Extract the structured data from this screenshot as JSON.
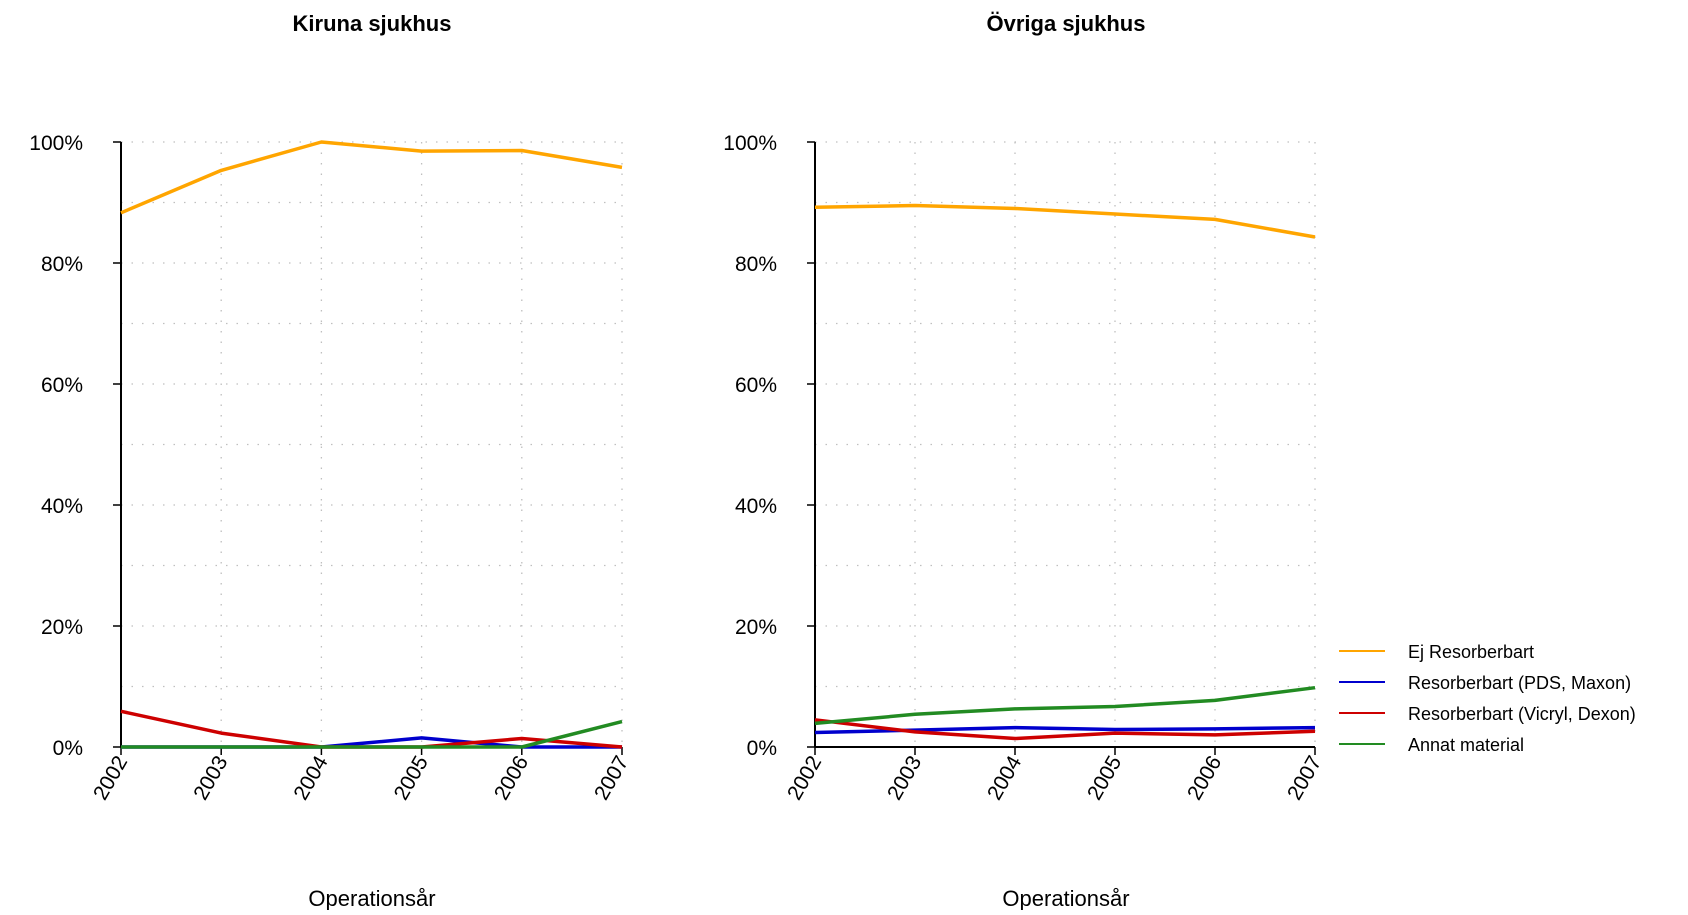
{
  "chart_data": [
    {
      "type": "line",
      "title": "Kiruna sjukhus",
      "xlabel": "Operationsår",
      "ylabel": "",
      "x": [
        "2002",
        "2003",
        "2004",
        "2005",
        "2006",
        "2007"
      ],
      "ylim": [
        0,
        100
      ],
      "yticks": [
        "0%",
        "20%",
        "40%",
        "60%",
        "80%",
        "100%"
      ],
      "grid": true,
      "series": [
        {
          "name": "Ej Resorberbart",
          "color": "#FFA500",
          "values": [
            88.3,
            95.3,
            100,
            98.5,
            98.6,
            95.8
          ]
        },
        {
          "name": "Resorberbart (PDS, Maxon)",
          "color": "#0000CD",
          "values": [
            0,
            0,
            0,
            1.5,
            0,
            0
          ]
        },
        {
          "name": "Resorberbart (Vicryl, Dexon)",
          "color": "#CD0000",
          "values": [
            5.9,
            2.3,
            0,
            0,
            1.4,
            0
          ]
        },
        {
          "name": "Annat material",
          "color": "#228B22",
          "values": [
            0,
            0,
            0,
            0,
            0,
            4.2
          ]
        }
      ]
    },
    {
      "type": "line",
      "title": "Övriga sjukhus",
      "xlabel": "Operationsår",
      "ylabel": "",
      "x": [
        "2002",
        "2003",
        "2004",
        "2005",
        "2006",
        "2007"
      ],
      "ylim": [
        0,
        100
      ],
      "yticks": [
        "0%",
        "20%",
        "40%",
        "60%",
        "80%",
        "100%"
      ],
      "grid": true,
      "legend_position": "right",
      "series": [
        {
          "name": "Ej Resorberbart",
          "color": "#FFA500",
          "values": [
            89.2,
            89.5,
            89.0,
            88.1,
            87.2,
            84.3
          ]
        },
        {
          "name": "Resorberbart (PDS, Maxon)",
          "color": "#0000CD",
          "values": [
            2.4,
            2.8,
            3.2,
            2.9,
            3.0,
            3.2
          ]
        },
        {
          "name": "Resorberbart (Vicryl, Dexon)",
          "color": "#CD0000",
          "values": [
            4.5,
            2.5,
            1.4,
            2.3,
            2.0,
            2.6
          ]
        },
        {
          "name": "Annat material",
          "color": "#228B22",
          "values": [
            3.9,
            5.4,
            6.3,
            6.7,
            7.7,
            9.8
          ]
        }
      ]
    }
  ]
}
